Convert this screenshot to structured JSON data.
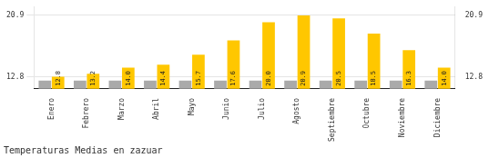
{
  "chart_data": {
    "type": "bar",
    "title": "Temperaturas Medias en zazuar",
    "categories": [
      "Enero",
      "Febrero",
      "Marzo",
      "Abril",
      "Mayo",
      "Junio",
      "Julio",
      "Agosto",
      "Septiembre",
      "Octubre",
      "Noviembre",
      "Diciembre"
    ],
    "series": [
      {
        "color": "#AAAAAA",
        "values": [
          12.3,
          12.3,
          12.3,
          12.3,
          12.3,
          12.3,
          12.3,
          12.3,
          12.3,
          12.3,
          12.3,
          12.3
        ]
      },
      {
        "color": "#FFC700",
        "values": [
          12.8,
          13.2,
          14.0,
          14.4,
          15.7,
          17.6,
          20.0,
          20.9,
          20.5,
          18.5,
          16.3,
          14.0
        ],
        "data_labels": true,
        "value_labels": [
          "12.8",
          "13.2",
          "14.0",
          "14.4",
          "15.7",
          "17.6",
          "20.0",
          "20.9",
          "20.5",
          "18.5",
          "16.3",
          "14.0"
        ]
      }
    ],
    "ylim": [
      11.2,
      22.0
    ],
    "yticks": [
      12.8,
      20.9
    ],
    "y2lim": [
      11.2,
      22.0
    ],
    "y2ticks": [
      12.8,
      20.9
    ],
    "grid": true
  }
}
